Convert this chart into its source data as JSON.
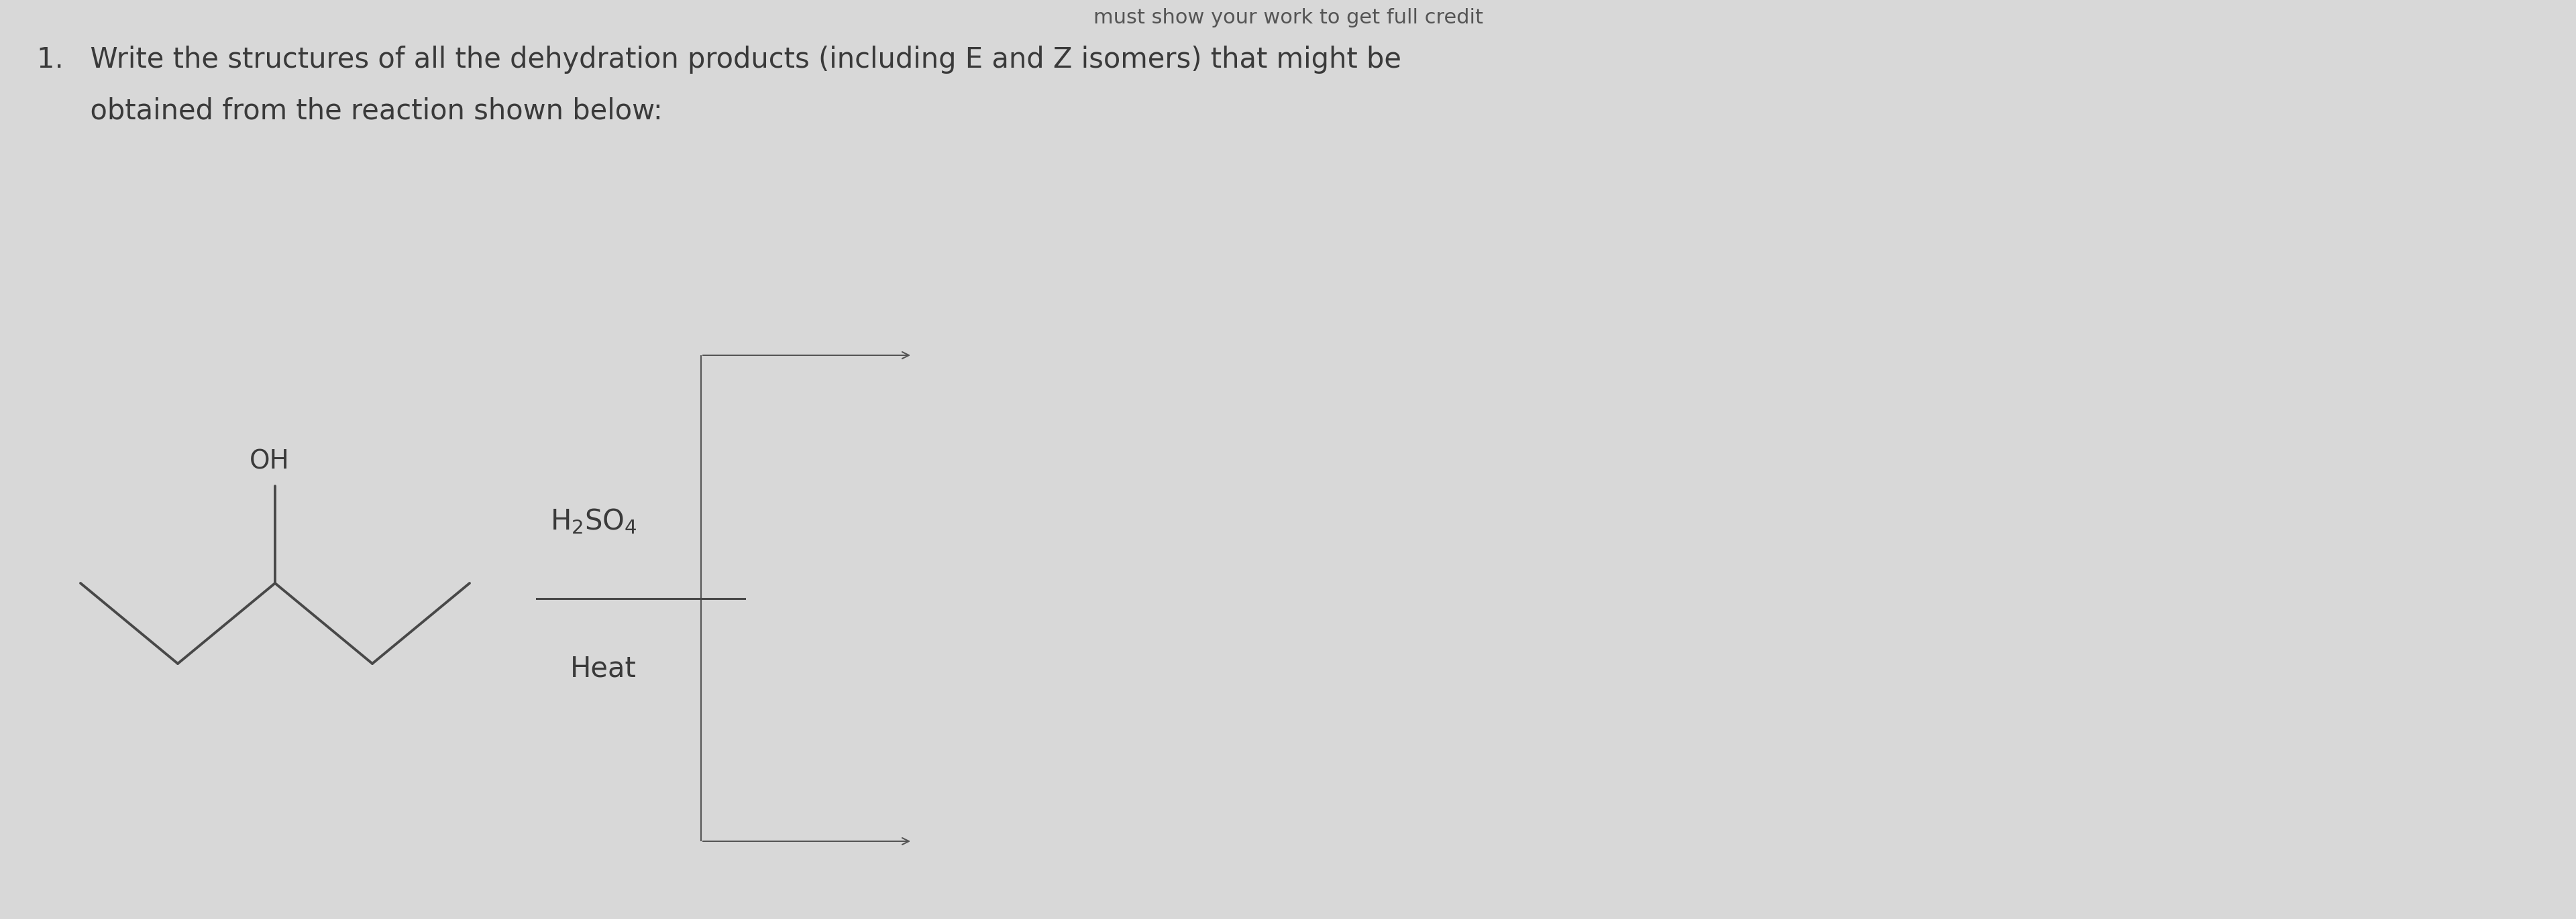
{
  "background_color": "#d8d8d8",
  "title_partial": "must show your work to get full credit",
  "title_fontsize": 22,
  "title_color": "#555555",
  "question_text_line1": "1.   Write the structures of all the dehydration products (including E and Z isomers) that might be",
  "question_text_line2": "      obtained from the reaction shown below:",
  "question_fontsize": 30,
  "question_color": "#3a3a3a",
  "oh_label": "OH",
  "reagent_top": "H",
  "reagent_top2": "SO",
  "reagent_top_sub2": "2",
  "reagent_top_sub4": "4",
  "reagent_bottom": "Heat",
  "reagent_fontsize": 30,
  "mol_color": "#484848",
  "mol_lw": 2.8,
  "bracket_color": "#555555",
  "bracket_lw": 1.5
}
